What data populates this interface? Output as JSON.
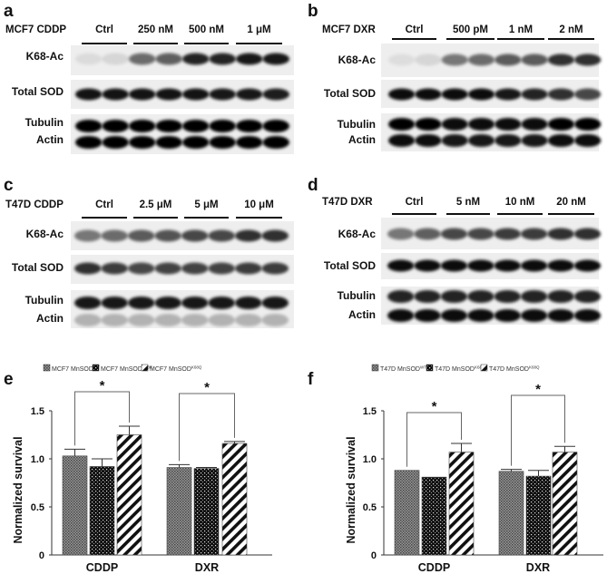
{
  "blots": [
    {
      "panel_label": "a",
      "title": "MCF7 CDDP",
      "groups": [
        "Ctrl",
        "250 nM",
        "500 nM",
        "1 μM"
      ],
      "rows": [
        {
          "label": "K68-Ac",
          "intensity": [
            0.08,
            0.1,
            0.55,
            0.6,
            0.85,
            0.85,
            0.9,
            0.9
          ]
        },
        {
          "label": "Total SOD",
          "intensity": [
            0.92,
            0.92,
            0.92,
            0.92,
            0.92,
            0.9,
            0.9,
            0.88
          ]
        },
        {
          "label": "Tubulin",
          "intensity": [
            1,
            1,
            1,
            1,
            1,
            1,
            1,
            1
          ]
        },
        {
          "label": "Actin",
          "intensity": [
            1,
            1,
            1,
            1,
            1,
            1,
            1,
            1
          ]
        }
      ]
    },
    {
      "panel_label": "b",
      "title": "MCF7 DXR",
      "groups": [
        "Ctrl",
        "500 pM",
        "1 nM",
        "2 nM"
      ],
      "rows": [
        {
          "label": "K68-Ac",
          "intensity": [
            0.07,
            0.1,
            0.5,
            0.55,
            0.62,
            0.62,
            0.8,
            0.8
          ]
        },
        {
          "label": "Total SOD",
          "intensity": [
            0.95,
            0.95,
            0.95,
            0.95,
            0.9,
            0.85,
            0.8,
            0.7
          ]
        },
        {
          "label": "Tubulin",
          "intensity": [
            1,
            1,
            0.95,
            0.95,
            0.95,
            0.95,
            1,
            1
          ]
        },
        {
          "label": "Actin",
          "intensity": [
            0.95,
            0.95,
            0.9,
            0.9,
            0.9,
            0.9,
            0.95,
            0.95
          ]
        }
      ]
    },
    {
      "panel_label": "c",
      "title": "T47D CDDP",
      "groups": [
        "Ctrl",
        "2.5 μM",
        "5 μM",
        "10 μM"
      ],
      "rows": [
        {
          "label": "K68-Ac",
          "intensity": [
            0.5,
            0.55,
            0.62,
            0.65,
            0.7,
            0.7,
            0.8,
            0.8
          ]
        },
        {
          "label": "Total SOD",
          "intensity": [
            0.8,
            0.75,
            0.7,
            0.72,
            0.72,
            0.72,
            0.75,
            0.75
          ]
        },
        {
          "label": "Tubulin",
          "intensity": [
            0.9,
            0.9,
            0.9,
            0.9,
            0.9,
            0.9,
            0.9,
            0.9
          ]
        },
        {
          "label": "Actin",
          "intensity": [
            0.25,
            0.25,
            0.25,
            0.25,
            0.25,
            0.25,
            0.25,
            0.25
          ]
        }
      ]
    },
    {
      "panel_label": "d",
      "title": "T47D DXR",
      "groups": [
        "Ctrl",
        "5 nM",
        "10 nM",
        "20 nM"
      ],
      "rows": [
        {
          "label": "K68-Ac",
          "intensity": [
            0.5,
            0.6,
            0.7,
            0.7,
            0.75,
            0.75,
            0.8,
            0.8
          ]
        },
        {
          "label": "Total SOD",
          "intensity": [
            0.95,
            0.95,
            0.95,
            0.95,
            0.95,
            0.95,
            0.95,
            0.95
          ]
        },
        {
          "label": "Tubulin",
          "intensity": [
            0.85,
            0.85,
            0.85,
            0.85,
            0.85,
            0.85,
            0.85,
            0.85
          ]
        },
        {
          "label": "Actin",
          "intensity": [
            0.95,
            0.95,
            0.95,
            0.95,
            0.95,
            0.95,
            0.95,
            0.95
          ]
        }
      ]
    }
  ],
  "chart_data": [
    {
      "panel_label": "e",
      "type": "bar",
      "ylabel": "Normalized survival",
      "ylim": [
        0,
        1.5
      ],
      "yticks": [
        "0",
        "0.5",
        "1.0",
        "1.5"
      ],
      "categories": [
        "CDDP",
        "DXR"
      ],
      "series": [
        {
          "name": "MCF7 MnSOD",
          "sup": "WT",
          "pattern": "gray-crosshatch",
          "values": [
            1.03,
            0.91
          ],
          "errors": [
            0.07,
            0.03
          ]
        },
        {
          "name": "MCF7 MnSOD",
          "sup": "K68R",
          "pattern": "black-dots",
          "values": [
            0.92,
            0.9
          ],
          "errors": [
            0.08,
            0.01
          ]
        },
        {
          "name": "MCF7 MnSOD",
          "sup": "K68Q",
          "pattern": "diagonal-stripes",
          "values": [
            1.25,
            1.16
          ],
          "errors": [
            0.09,
            0.02
          ]
        }
      ],
      "significance": [
        {
          "category": "CDDP",
          "between": [
            "WT",
            "K68Q"
          ],
          "mark": "*"
        },
        {
          "category": "DXR",
          "between": [
            "WT",
            "K68Q"
          ],
          "mark": "*"
        }
      ],
      "legend": "top"
    },
    {
      "panel_label": "f",
      "type": "bar",
      "ylabel": "Normalized survival",
      "ylim": [
        0,
        1.5
      ],
      "yticks": [
        "0",
        "0.5",
        "1.0",
        "1.5"
      ],
      "categories": [
        "CDDP",
        "DXR"
      ],
      "series": [
        {
          "name": "T47D MnSOD",
          "sup": "WT",
          "pattern": "gray-crosshatch",
          "values": [
            0.88,
            0.87
          ],
          "errors": [
            0.0,
            0.02
          ]
        },
        {
          "name": "T47D MnSOD",
          "sup": "K68R",
          "pattern": "black-dots",
          "values": [
            0.81,
            0.82
          ],
          "errors": [
            0.0,
            0.06
          ]
        },
        {
          "name": "T47D MnSOD",
          "sup": "K68Q",
          "pattern": "diagonal-stripes",
          "values": [
            1.07,
            1.07
          ],
          "errors": [
            0.09,
            0.06
          ]
        }
      ],
      "significance": [
        {
          "category": "CDDP",
          "between": [
            "WT",
            "K68Q"
          ],
          "mark": "*"
        },
        {
          "category": "DXR",
          "between": [
            "WT",
            "K68Q"
          ],
          "mark": "*"
        }
      ],
      "legend": "top"
    }
  ]
}
